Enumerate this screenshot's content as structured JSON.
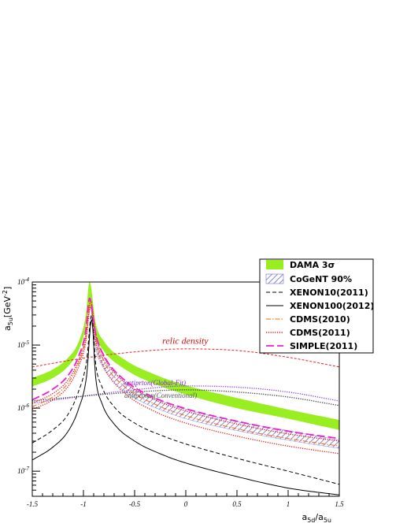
{
  "chart_data": {
    "type": "line",
    "title": "",
    "xlabel_main": "a",
    "xlabel_sub1": "5d",
    "xlabel_sep": "/a",
    "xlabel_sub2": "5u",
    "ylabel_main": "a",
    "ylabel_sub": "5u",
    "ylabel_unit": "[GeV",
    "ylabel_exp": "-2",
    "ylabel_close": "]",
    "xlim": [
      -1.5,
      1.5
    ],
    "ylim": [
      4e-08,
      0.0001
    ],
    "yscale": "log",
    "x_ticks": [
      "-1.5",
      "-1",
      "-0.5",
      "0",
      "0.5",
      "1",
      "1.5"
    ],
    "y_ticks": [
      {
        "base": "10",
        "exp": "-7",
        "value": 1e-07
      },
      {
        "base": "10",
        "exp": "-6",
        "value": 1e-06
      },
      {
        "base": "10",
        "exp": "-5",
        "value": 1e-05
      },
      {
        "base": "10",
        "exp": "-4",
        "value": 0.0001
      }
    ],
    "legend": [
      {
        "text": "DAMA 3σ",
        "style": "fill",
        "color": "#99ee22"
      },
      {
        "text": "CoGeNT 90%",
        "style": "hatch",
        "color": "#7070cc"
      },
      {
        "text": "XENON10(2011)",
        "style": "dashed",
        "color": "#000000"
      },
      {
        "text": "XENON100(2012)",
        "style": "solid",
        "color": "#000000"
      },
      {
        "text": "CDMS(2010)",
        "style": "dashdot",
        "color": "#ff6600"
      },
      {
        "text": "CDMS(2011)",
        "style": "dotted",
        "color": "#ee1111"
      },
      {
        "text": "SIMPLE(2011)",
        "style": "longdash",
        "color": "#ee22cc"
      }
    ],
    "annotations": [
      {
        "text": "relic density",
        "color": "#dd1111",
        "x": -0.23,
        "y": 1.04e-05
      },
      {
        "text": "antiprton(Global-Fit)",
        "color": "#8822dd",
        "x": -0.6,
        "y": 2.3e-06
      },
      {
        "text": "antiproton(Conventional)",
        "color": "#555555",
        "x": -0.6,
        "y": 1.45e-06
      }
    ],
    "series": [
      {
        "name": "relic density",
        "style": "dashed-fine",
        "color": "#ee2222",
        "x": [
          -1.5,
          -1.0,
          -0.5,
          0.0,
          0.5,
          1.0,
          1.5
        ],
        "y": [
          4.5e-06,
          6.2e-06,
          7.8e-06,
          8.7e-06,
          8.2e-06,
          6.4e-06,
          4.5e-06
        ]
      },
      {
        "name": "antiprton(Global-Fit)",
        "style": "dotted",
        "color": "#8833ee",
        "x": [
          -1.5,
          -1.0,
          -0.5,
          0.0,
          0.5,
          1.0,
          1.5
        ],
        "y": [
          1.2e-06,
          1.55e-06,
          1.95e-06,
          2.25e-06,
          2.15e-06,
          1.8e-06,
          1.3e-06
        ]
      },
      {
        "name": "antiproton(Conventional)",
        "style": "dotted",
        "color": "#333333",
        "x": [
          -1.5,
          -1.0,
          -0.5,
          0.0,
          0.5,
          1.0,
          1.5
        ],
        "y": [
          1.3e-06,
          1.55e-06,
          1.8e-06,
          1.95e-06,
          1.8e-06,
          1.5e-06,
          1.1e-06
        ]
      },
      {
        "name": "DAMA 3σ",
        "style": "band",
        "color": "#99ee22",
        "x": [
          -1.5,
          -1.3,
          -1.15,
          -1.05,
          -0.98,
          -0.94,
          -0.88,
          -0.8,
          -0.6,
          -0.3,
          0.0,
          0.5,
          1.0,
          1.5
        ],
        "y_low": [
          2.2e-06,
          3e-06,
          4.6e-06,
          8e-06,
          1.8e-05,
          4e-05,
          1.4e-05,
          8e-06,
          4.2e-06,
          2.4e-06,
          1.65e-06,
          1e-06,
          6.8e-07,
          4.5e-07
        ],
        "y_high": [
          3e-06,
          4.1e-06,
          6.3e-06,
          1.1e-05,
          2.8e-05,
          0.0001,
          2.2e-05,
          1.15e-05,
          5.9e-06,
          3.4e-06,
          2.3e-06,
          1.45e-06,
          9.5e-07,
          6.5e-07
        ]
      },
      {
        "name": "CoGeNT 90%",
        "style": "band-hatch",
        "color": "#6a6ad0",
        "x": [
          -0.92,
          -0.88,
          -0.82,
          -0.7,
          -0.5,
          -0.2,
          0.0,
          0.5,
          1.0,
          1.5
        ],
        "y_low": [
          3e-05,
          9e-06,
          4.8e-06,
          2.6e-06,
          1.45e-06,
          8.8e-07,
          6.8e-07,
          4.4e-07,
          3.1e-07,
          2.3e-07
        ],
        "y_high": [
          4e-05,
          1.35e-05,
          6.8e-06,
          3.6e-06,
          2e-06,
          1.22e-06,
          9.6e-07,
          6.1e-07,
          4.4e-07,
          3.1e-07
        ]
      },
      {
        "name": "XENON10(2011)",
        "style": "dashed",
        "color": "#000000",
        "x": [
          -1.5,
          -1.3,
          -1.15,
          -1.05,
          -0.97,
          -0.92,
          -0.88,
          -0.82,
          -0.7,
          -0.5,
          -0.2,
          0.0,
          0.5,
          1.0,
          1.5
        ],
        "y": [
          2.8e-07,
          4.5e-07,
          8e-07,
          1.8e-06,
          5.5e-06,
          3e-05,
          5e-06,
          2.2e-06,
          1.05e-06,
          5.8e-07,
          3.5e-07,
          2.7e-07,
          1.6e-07,
          1e-07,
          6.2e-08
        ]
      },
      {
        "name": "XENON100(2012)",
        "style": "solid",
        "color": "#000000",
        "x": [
          -1.5,
          -1.3,
          -1.15,
          -1.05,
          -0.97,
          -0.92,
          -0.88,
          -0.82,
          -0.7,
          -0.5,
          -0.2,
          0.0,
          0.5,
          1.0,
          1.5
        ],
        "y": [
          1.5e-07,
          2.4e-07,
          4.3e-07,
          9.5e-07,
          3.2e-06,
          2.5e-05,
          3e-06,
          1.2e-06,
          5.6e-07,
          3e-07,
          1.75e-07,
          1.35e-07,
          8.2e-08,
          5.4e-08,
          4.2e-08
        ]
      },
      {
        "name": "CDMS(2010)",
        "style": "dashdot",
        "color": "#ff6600",
        "x": [
          -1.5,
          -1.3,
          -1.15,
          -1.05,
          -0.98,
          -0.93,
          -0.88,
          -0.8,
          -0.6,
          -0.3,
          0.0,
          0.5,
          1.0,
          1.5
        ],
        "y": [
          1.05e-06,
          1.5e-06,
          2.5e-06,
          5e-06,
          1.2e-05,
          4.5e-05,
          1.3e-05,
          5.5e-06,
          2.2e-06,
          1.15e-06,
          7.6e-07,
          4.7e-07,
          3.3e-07,
          2.5e-07
        ]
      },
      {
        "name": "CDMS(2011)",
        "style": "dotted",
        "color": "#ee1111",
        "x": [
          -1.5,
          -1.3,
          -1.15,
          -1.05,
          -0.98,
          -0.93,
          -0.88,
          -0.8,
          -0.6,
          -0.3,
          0.0,
          0.5,
          1.0,
          1.5
        ],
        "y": [
          9.5e-07,
          1.35e-06,
          2.2e-06,
          4.4e-06,
          1.05e-05,
          4e-05,
          1.1e-05,
          4.5e-06,
          1.75e-06,
          8.8e-07,
          5.8e-07,
          3.6e-07,
          2.5e-07,
          1.9e-07
        ]
      },
      {
        "name": "CDMS(2011)",
        "style": "dotted",
        "color": "#ee1111",
        "x": [
          -1.5,
          -1.3,
          -1.15,
          -1.05,
          -0.98,
          -0.93,
          -0.88,
          -0.8,
          -0.6,
          -0.3,
          0.0,
          0.5,
          1.0,
          1.5
        ],
        "y": [
          1.2e-06,
          1.7e-06,
          2.8e-06,
          5.6e-06,
          1.35e-05,
          5e-05,
          1.5e-05,
          6.5e-06,
          2.6e-06,
          1.35e-06,
          9e-07,
          5.6e-07,
          3.9e-07,
          3e-07
        ]
      },
      {
        "name": "SIMPLE(2011)",
        "style": "longdash",
        "color": "#ee22cc",
        "x": [
          -1.5,
          -1.3,
          -1.15,
          -1.05,
          -0.98,
          -0.94,
          -0.88,
          -0.8,
          -0.6,
          -0.3,
          0.0,
          0.5,
          1.0,
          1.5
        ],
        "y": [
          1.35e-06,
          2e-06,
          3.3e-06,
          6.5e-06,
          1.6e-05,
          5.5e-05,
          1.5e-05,
          6.8e-06,
          2.8e-06,
          1.45e-06,
          9.8e-07,
          6.2e-07,
          4.3e-07,
          3.3e-07
        ]
      }
    ]
  }
}
